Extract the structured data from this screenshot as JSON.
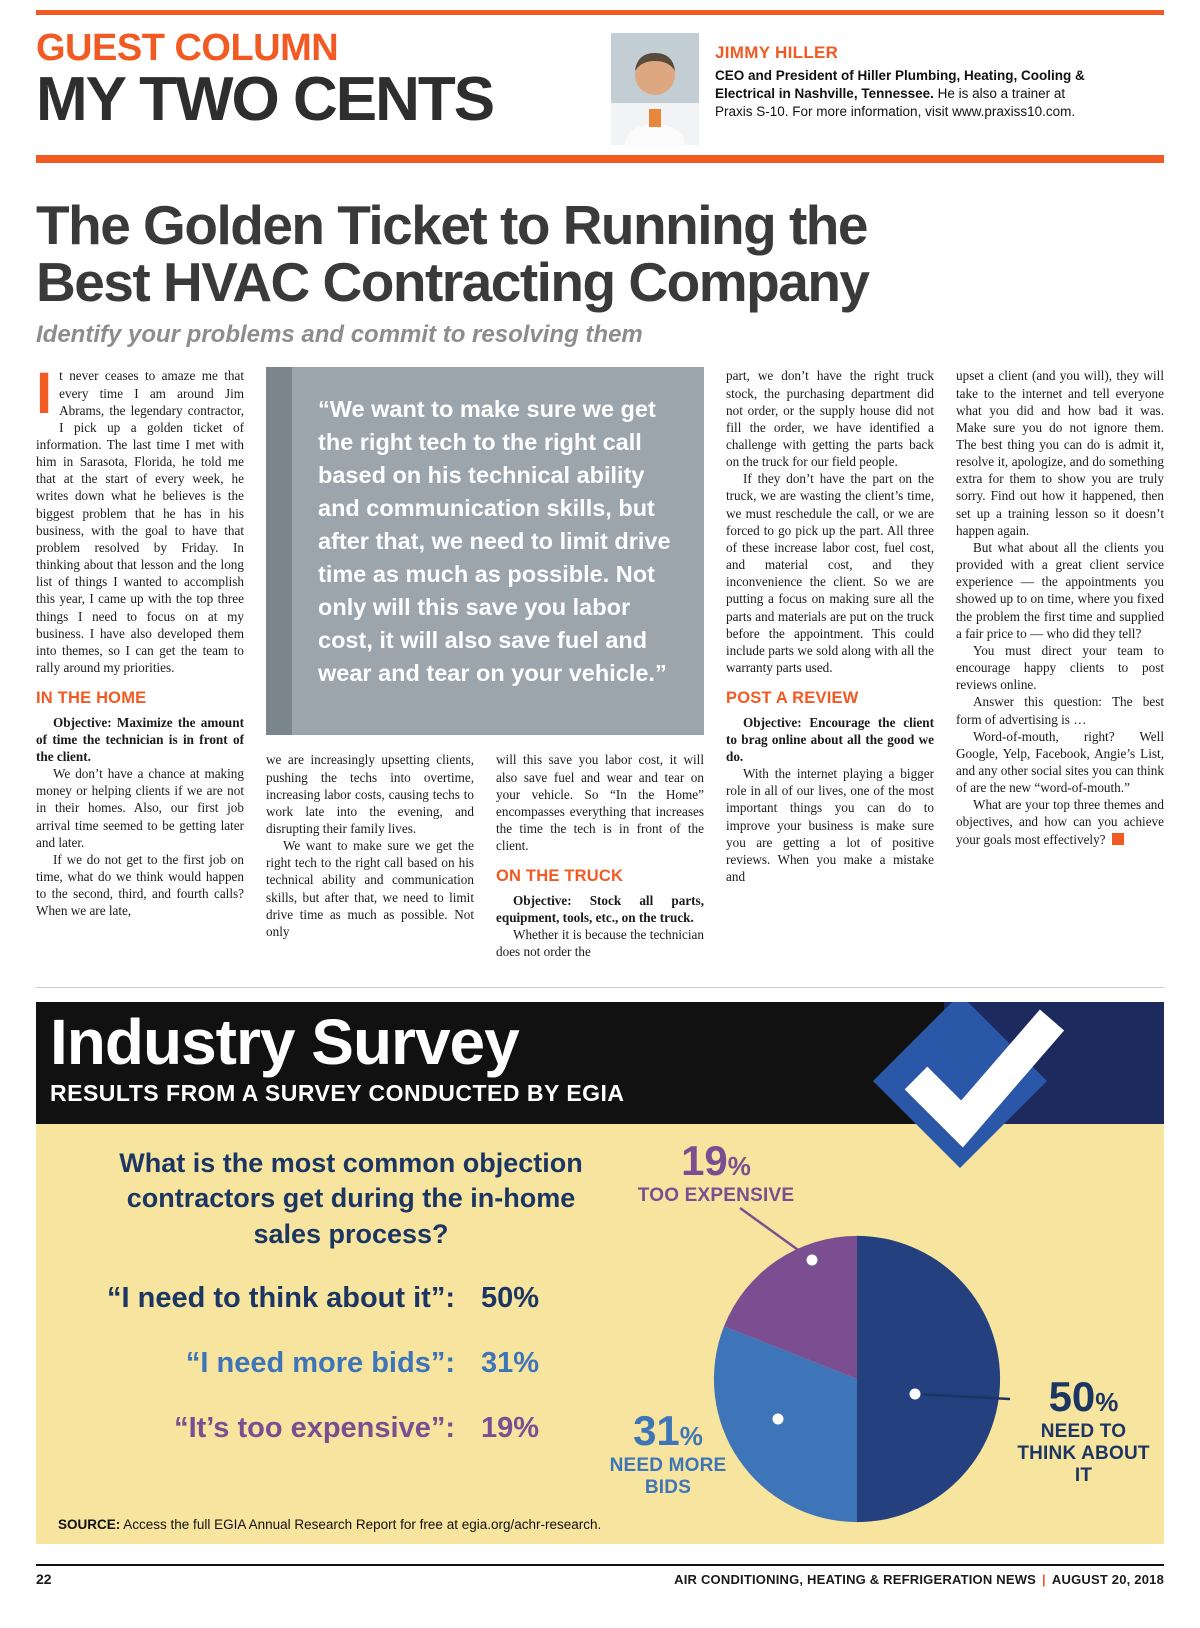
{
  "masthead": {
    "kicker": "GUEST COLUMN",
    "title": "MY TWO CENTS",
    "author": {
      "name": "JIMMY HILLER",
      "bio_bold": "CEO and President of Hiller Plumbing, Heating, Cooling & Electrical in Nashville, Tennessee.",
      "bio_text": "He is also a trainer at Praxis S-10. For more information, visit www.praxiss10.com."
    }
  },
  "article": {
    "headline_lines": [
      "The Golden Ticket to Running the",
      "Best HVAC Contracting Company"
    ],
    "deck": "Identify your problems and commit to resolving them",
    "drop_cap": "I",
    "pull_quote": "“We want to make sure we get the right tech to the right call based on his technical ability and communication skills, but after that, we need to limit drive time as much as possible. Not only will this save you labor cost, it will also save fuel and wear and tear on your vehicle.”",
    "columns": [
      {
        "blocks": [
          {
            "type": "opener",
            "text": "t never ceases to amaze me that every time I am around Jim Abrams, the legendary contractor, I pick up a golden ticket of information. The last time I met with him in Sarasota, Florida, he told me that at the start of every week, he writes down what he believes is the biggest problem that he has in his business, with the goal to have that problem resolved by Friday. In thinking about that lesson and the long list of things I wanted to accomplish this year, I came up with the top three things I need to focus on at my business. I have also developed them into themes, so I can get the team to rally around my priorities."
          },
          {
            "type": "heading",
            "text": "IN THE HOME"
          },
          {
            "type": "lead",
            "text": "Objective: Maximize the amount of time the technician is in front of the client."
          },
          {
            "type": "paragraph",
            "text": "We don’t have a chance at making money or helping clients if we are not in their homes. Also, our first job arrival time seemed to be getting later and later."
          },
          {
            "type": "paragraph",
            "text": "If we do not get to the first job on time, what do we think would happen to the second, third, and fourth calls? When we are late,"
          }
        ]
      },
      {
        "blocks": [
          {
            "type": "paragraph_flush",
            "text": "we are increasingly upsetting clients, pushing the techs into overtime, increasing labor costs, causing techs to work late into the evening, and disrupting their family lives."
          },
          {
            "type": "paragraph",
            "text": "We want to make sure we get the right tech to the right call based on his technical ability and communication skills, but after that, we need to limit drive time as much as possible. Not only"
          }
        ]
      },
      {
        "blocks": [
          {
            "type": "paragraph_flush",
            "text": "will this save you labor cost, it will also save fuel and wear and tear on your vehicle. So “In the Home” encompasses everything that increases the time the tech is in front of the client."
          },
          {
            "type": "heading",
            "text": "ON THE TRUCK"
          },
          {
            "type": "lead",
            "text": "Objective: Stock all parts, equipment, tools, etc., on the truck."
          },
          {
            "type": "paragraph",
            "text": "Whether it is because the technician does not order the"
          }
        ]
      },
      {
        "blocks": [
          {
            "type": "paragraph_flush",
            "text": "part, we don’t have the right truck stock, the purchasing department did not order, or the supply house did not fill the order, we have identified a challenge with getting the parts back on the truck for our field people."
          },
          {
            "type": "paragraph",
            "text": "If they don’t have the part on the truck, we are wasting the client’s time, we must reschedule the call, or we are forced to go pick up the part. All three of these increase labor cost, fuel cost, and material cost, and they inconvenience the client. So we are putting a focus on making sure all the parts and materials are put on the truck before the appointment. This could include parts we sold along with all the warranty parts used."
          },
          {
            "type": "heading",
            "text": "POST A REVIEW"
          },
          {
            "type": "lead",
            "text": "Objective: Encourage the client to brag online about all the good we do."
          },
          {
            "type": "paragraph",
            "text": "With the internet playing a bigger role in all of our lives, one of the most important things you can do to improve your business is make sure you are getting a lot of positive reviews. When you make a mistake and"
          }
        ]
      },
      {
        "blocks": [
          {
            "type": "paragraph_flush",
            "text": "upset a client (and you will), they will take to the internet and tell everyone what you did and how bad it was. Make sure you do not ignore them. The best thing you can do is admit it, resolve it, apologize, and do something extra for them to show you are truly sorry. Find out how it happened, then set up a training lesson so it doesn’t happen again."
          },
          {
            "type": "paragraph",
            "text": "But what about all the clients you provided with a great client service experience — the appointments you showed up to on time, where you fixed the problem the first time and supplied a fair price to — who did they tell?"
          },
          {
            "type": "paragraph",
            "text": "You must direct your team to encourage happy clients to post reviews online."
          },
          {
            "type": "paragraph",
            "text": "Answer this question: The best form of advertising is …"
          },
          {
            "type": "paragraph",
            "text": "Word-of-mouth, right? Well Google, Yelp, Facebook, Angie’s List, and any other social sites you can think of are the new “word-of-mouth.”"
          },
          {
            "type": "paragraph_end",
            "text": "What are your top three themes and objectives, and how can you achieve your goals most effectively?"
          }
        ]
      }
    ]
  },
  "survey": {
    "title": "Industry Survey",
    "subtitle": "RESULTS FROM A SURVEY CONDUCTED BY EGIA",
    "question": "What is the most common objection contractors get during the in-home sales process?",
    "answers": [
      {
        "label": "“I need to think about it”:",
        "value": "50%",
        "color": "#1C3664"
      },
      {
        "label": "“I need more bids”:",
        "value": "31%",
        "color": "#3E74B8"
      },
      {
        "label": "“It’s too expensive”:",
        "value": "19%",
        "color": "#7B4E92"
      }
    ],
    "callouts": [
      {
        "number": "19",
        "percent": "%",
        "label": "TOO EXPENSIVE"
      },
      {
        "number": "50",
        "percent": "%",
        "label": "NEED TO THINK ABOUT IT"
      },
      {
        "number": "31",
        "percent": "%",
        "label": "NEED MORE BIDS"
      }
    ],
    "source_label": "SOURCE:",
    "source_text": "Access the full EGIA Annual Research Report for free at egia.org/achr-research."
  },
  "chart_data": {
    "type": "pie",
    "title": "What is the most common objection contractors get during the in-home sales process?",
    "categories": [
      "Need to think about it",
      "Need more bids",
      "Too expensive"
    ],
    "values": [
      50,
      31,
      19
    ],
    "unit": "percent",
    "colors": [
      "#24407E",
      "#3E74B8",
      "#7B4E92"
    ],
    "legend_position": "callouts",
    "source": "EGIA Annual Research Report, egia.org/achr-research"
  },
  "footer": {
    "page_number": "22",
    "publication": "AIR CONDITIONING, HEATING & REFRIGERATION NEWS",
    "separator": "|",
    "date": "AUGUST 20, 2018"
  },
  "colors": {
    "accent_orange": "#F15A22",
    "headline_gray": "#3A3A3A",
    "quote_bg": "#9CA5AB",
    "quote_bar": "#7A858C",
    "banner_black": "#111111",
    "panel_yellow": "#F7E49E",
    "navy": "#1C3664",
    "blue": "#3E74B8",
    "purple": "#7B4E92"
  }
}
